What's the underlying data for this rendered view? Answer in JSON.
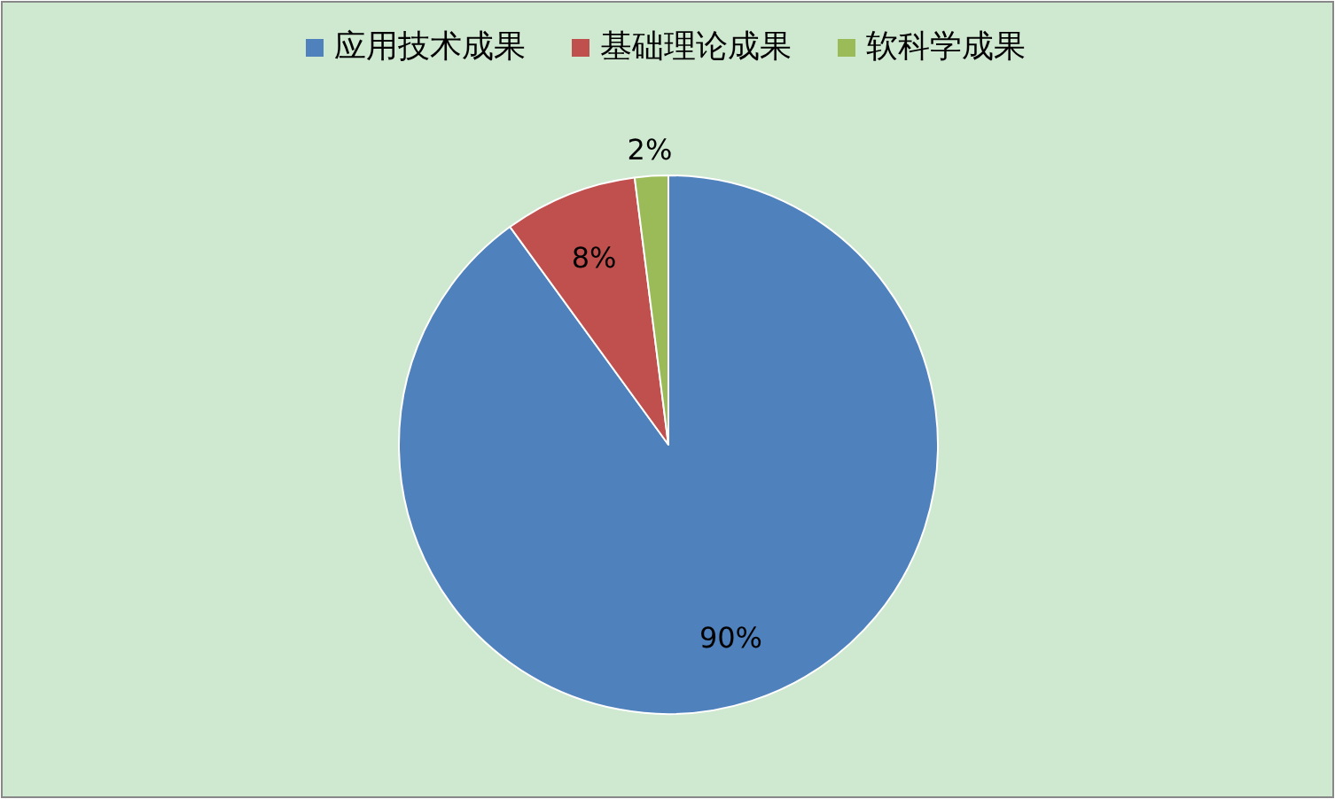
{
  "chart_data": {
    "type": "pie",
    "categories": [
      "应用技术成果",
      "基础理论成果",
      "软科学成果"
    ],
    "values": [
      90,
      8,
      2
    ],
    "colors": [
      "#4f81bd",
      "#c0504d",
      "#9bbb59"
    ],
    "value_labels": [
      "90%",
      "8%",
      "2%"
    ],
    "legend": "top"
  }
}
